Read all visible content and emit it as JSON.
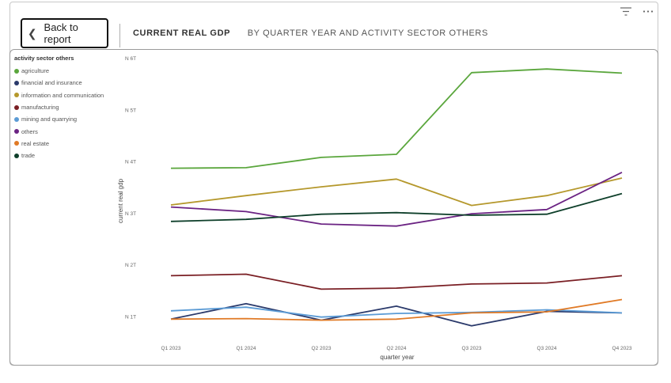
{
  "header": {
    "back_label": "Back to report",
    "title": "CURRENT REAL GDP",
    "subtitle": "BY QUARTER YEAR AND ACTIVITY SECTOR OTHERS"
  },
  "toolbar": {
    "filter_icon": "filter-icon",
    "more_icon": "more-options-icon"
  },
  "legend": {
    "title": "activity sector others",
    "items": [
      {
        "label": "agriculture",
        "color": "#5aa63c"
      },
      {
        "label": "financial and insurance",
        "color": "#2b3a6b"
      },
      {
        "label": "information and communication",
        "color": "#b5982c"
      },
      {
        "label": "manufacturing",
        "color": "#7a1f24"
      },
      {
        "label": "mining and quarrying",
        "color": "#5b9bd5"
      },
      {
        "label": "others",
        "color": "#6b2383"
      },
      {
        "label": "real estate",
        "color": "#e07a26"
      },
      {
        "label": "trade",
        "color": "#0e3f2a"
      }
    ]
  },
  "chart_data": {
    "type": "line",
    "title": "",
    "xlabel": "quarter year",
    "ylabel": "current real gdp",
    "x": [
      "Q1 2023",
      "Q1 2024",
      "Q2 2023",
      "Q2 2024",
      "Q3 2023",
      "Q3 2024",
      "Q4 2023"
    ],
    "y_ticks": [
      "N 1T",
      "N 2T",
      "N 3T",
      "N 4T",
      "N 5T",
      "N 6T"
    ],
    "ylim": [
      1,
      6
    ],
    "series": [
      {
        "name": "agriculture",
        "color": "#5aa63c",
        "values": [
          3.87,
          3.88,
          4.08,
          4.14,
          5.72,
          5.79,
          5.71
        ]
      },
      {
        "name": "financial and insurance",
        "color": "#2b3a6b",
        "values": [
          0.95,
          1.25,
          0.93,
          1.2,
          0.82,
          1.1,
          1.07
        ]
      },
      {
        "name": "information and communication",
        "color": "#b5982c",
        "values": [
          3.16,
          3.34,
          3.51,
          3.66,
          3.15,
          3.34,
          3.68
        ]
      },
      {
        "name": "manufacturing",
        "color": "#7a1f24",
        "values": [
          1.79,
          1.82,
          1.53,
          1.55,
          1.63,
          1.65,
          1.79
        ]
      },
      {
        "name": "mining and quarrying",
        "color": "#5b9bd5",
        "values": [
          1.11,
          1.18,
          0.99,
          1.06,
          1.08,
          1.13,
          1.07
        ]
      },
      {
        "name": "others",
        "color": "#6b2383",
        "values": [
          3.12,
          3.03,
          2.79,
          2.75,
          2.99,
          3.07,
          3.79
        ]
      },
      {
        "name": "real estate",
        "color": "#e07a26",
        "values": [
          0.95,
          0.96,
          0.93,
          0.95,
          1.07,
          1.09,
          1.33
        ]
      },
      {
        "name": "trade",
        "color": "#0e3f2a",
        "values": [
          2.84,
          2.88,
          2.98,
          3.01,
          2.96,
          2.98,
          3.38
        ]
      }
    ],
    "grid": false,
    "legend_position": "left"
  }
}
